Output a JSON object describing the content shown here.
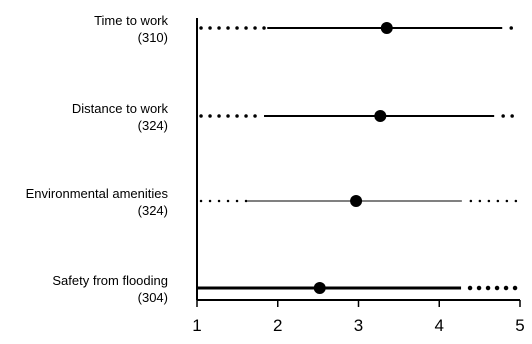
{
  "chart_data": {
    "type": "dot-interval",
    "xlim": [
      1,
      5
    ],
    "xticks": [
      1,
      2,
      3,
      4,
      5
    ],
    "grid": false,
    "legend": "none",
    "colors": {
      "marks": "#000000",
      "background": "#ffffff"
    },
    "categories": [
      {
        "label": "Time to work",
        "n": "(310)",
        "mean": 3.35,
        "inner": [
          1.87,
          4.78
        ],
        "outer": [
          1.05,
          4.95
        ],
        "weight": "medium"
      },
      {
        "label": "Distance to work",
        "n": "(324)",
        "mean": 3.27,
        "inner": [
          1.83,
          4.68
        ],
        "outer": [
          1.05,
          5.0
        ],
        "weight": "medium"
      },
      {
        "label": "Environmental amenities",
        "n": "(324)",
        "mean": 2.97,
        "inner": [
          1.62,
          4.28
        ],
        "outer": [
          1.05,
          4.95
        ],
        "weight": "thin"
      },
      {
        "label": "Safety from flooding",
        "n": "(304)",
        "mean": 2.52,
        "inner": [
          1.0,
          4.27
        ],
        "outer": [
          1.0,
          5.0
        ],
        "weight": "thick"
      }
    ]
  }
}
